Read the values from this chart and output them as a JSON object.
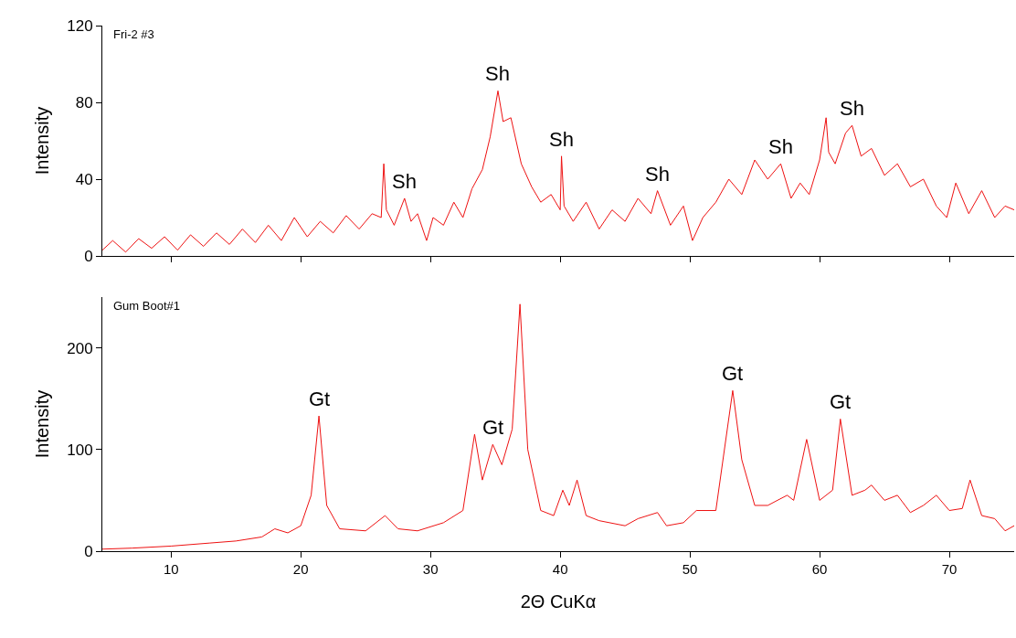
{
  "chart_data": [
    {
      "type": "line",
      "color": "#ee1111",
      "xlim": [
        4.7,
        75
      ],
      "xticks": [
        10,
        20,
        30,
        40,
        50,
        60,
        70
      ],
      "ylim": [
        0,
        120
      ],
      "yticks": [
        0,
        40,
        80,
        120
      ],
      "tick_labels": "y",
      "ylabel": "Intensity",
      "annotations": [
        "Fri-2 #3",
        {
          "text": "Sh",
          "x": 28,
          "y": 30
        },
        {
          "text": "Sh",
          "x": 35.2,
          "y": 86
        },
        {
          "text": "Sh",
          "x": 40.1,
          "y": 52
        },
        {
          "text": "Sh",
          "x": 47.5,
          "y": 34
        },
        {
          "text": "Sh",
          "x": 57,
          "y": 48
        },
        {
          "text": "Sh",
          "x": 62.5,
          "y": 68
        }
      ],
      "x": [
        4.7,
        5.5,
        6.5,
        7.5,
        8.5,
        9.5,
        10.5,
        11.5,
        12.5,
        13.5,
        14.5,
        15.5,
        16.5,
        17.5,
        18.5,
        19.5,
        20.5,
        21.5,
        22.5,
        23.5,
        24.5,
        25.5,
        26.2,
        26.4,
        26.6,
        27.2,
        28,
        28.5,
        29,
        29.7,
        30.2,
        31,
        31.8,
        32.5,
        33.2,
        34,
        34.6,
        35.2,
        35.6,
        36.2,
        37,
        37.8,
        38.5,
        39.3,
        40,
        40.1,
        40.3,
        41,
        42,
        43,
        44,
        45,
        46,
        47,
        47.5,
        48.5,
        49.5,
        50.2,
        51,
        52,
        53,
        54,
        55,
        56,
        57,
        57.8,
        58.5,
        59.2,
        60,
        60.5,
        60.7,
        61.2,
        62,
        62.5,
        63.2,
        64,
        65,
        66,
        67,
        68,
        69,
        69.8,
        70.5,
        71.5,
        72.5,
        73.5,
        74.3,
        75
      ],
      "values": [
        3,
        8,
        2,
        9,
        4,
        10,
        3,
        11,
        5,
        12,
        6,
        14,
        7,
        16,
        8,
        20,
        10,
        18,
        12,
        21,
        14,
        22,
        20,
        48,
        24,
        16,
        30,
        18,
        22,
        8,
        20,
        16,
        28,
        20,
        35,
        45,
        62,
        86,
        70,
        72,
        48,
        36,
        28,
        32,
        24,
        52,
        26,
        18,
        28,
        14,
        24,
        18,
        30,
        22,
        34,
        16,
        26,
        8,
        20,
        28,
        40,
        32,
        50,
        40,
        48,
        30,
        38,
        32,
        50,
        72,
        54,
        48,
        64,
        68,
        52,
        56,
        42,
        48,
        36,
        40,
        26,
        20,
        38,
        22,
        34,
        20,
        26,
        24
      ]
    },
    {
      "type": "line",
      "color": "#ee1111",
      "xlim": [
        4.7,
        75
      ],
      "xticks": [
        10,
        20,
        30,
        40,
        50,
        60,
        70
      ],
      "ylim": [
        0,
        250
      ],
      "yticks": [
        0,
        100,
        200
      ],
      "xlabel": "2Θ CuKα",
      "ylabel": "Intensity",
      "annotations": [
        "Gum Boot#1",
        {
          "text": "Gt",
          "x": 21.4,
          "y": 133
        },
        {
          "text": "Gt",
          "x": 34.8,
          "y": 105
        },
        {
          "text": "Gt",
          "x": 53.3,
          "y": 158
        },
        {
          "text": "Gt",
          "x": 61.6,
          "y": 130
        }
      ],
      "x": [
        4.7,
        7,
        10,
        13,
        15,
        17,
        18,
        19,
        20,
        20.8,
        21.4,
        22,
        23,
        25,
        26.5,
        27.5,
        29,
        31,
        32.5,
        33.4,
        34,
        34.8,
        35.5,
        36.3,
        36.9,
        37.5,
        38.5,
        39.5,
        40.2,
        40.7,
        41.3,
        42,
        43,
        45,
        46,
        47.5,
        48.2,
        49.5,
        50.5,
        52,
        53.3,
        54,
        55,
        56,
        57.5,
        58,
        59,
        60,
        61,
        61.6,
        62.5,
        63.5,
        64,
        65,
        66,
        67,
        68,
        69,
        70,
        71,
        71.6,
        72.5,
        73.5,
        74.3,
        75
      ],
      "values": [
        2,
        3,
        5,
        8,
        10,
        14,
        22,
        18,
        25,
        55,
        133,
        45,
        22,
        20,
        35,
        22,
        20,
        28,
        40,
        115,
        70,
        105,
        85,
        120,
        243,
        100,
        40,
        35,
        60,
        45,
        70,
        35,
        30,
        25,
        32,
        38,
        25,
        28,
        40,
        40,
        158,
        90,
        45,
        45,
        55,
        50,
        110,
        50,
        60,
        130,
        55,
        60,
        65,
        50,
        55,
        38,
        45,
        55,
        40,
        42,
        70,
        35,
        32,
        20,
        25
      ]
    }
  ]
}
